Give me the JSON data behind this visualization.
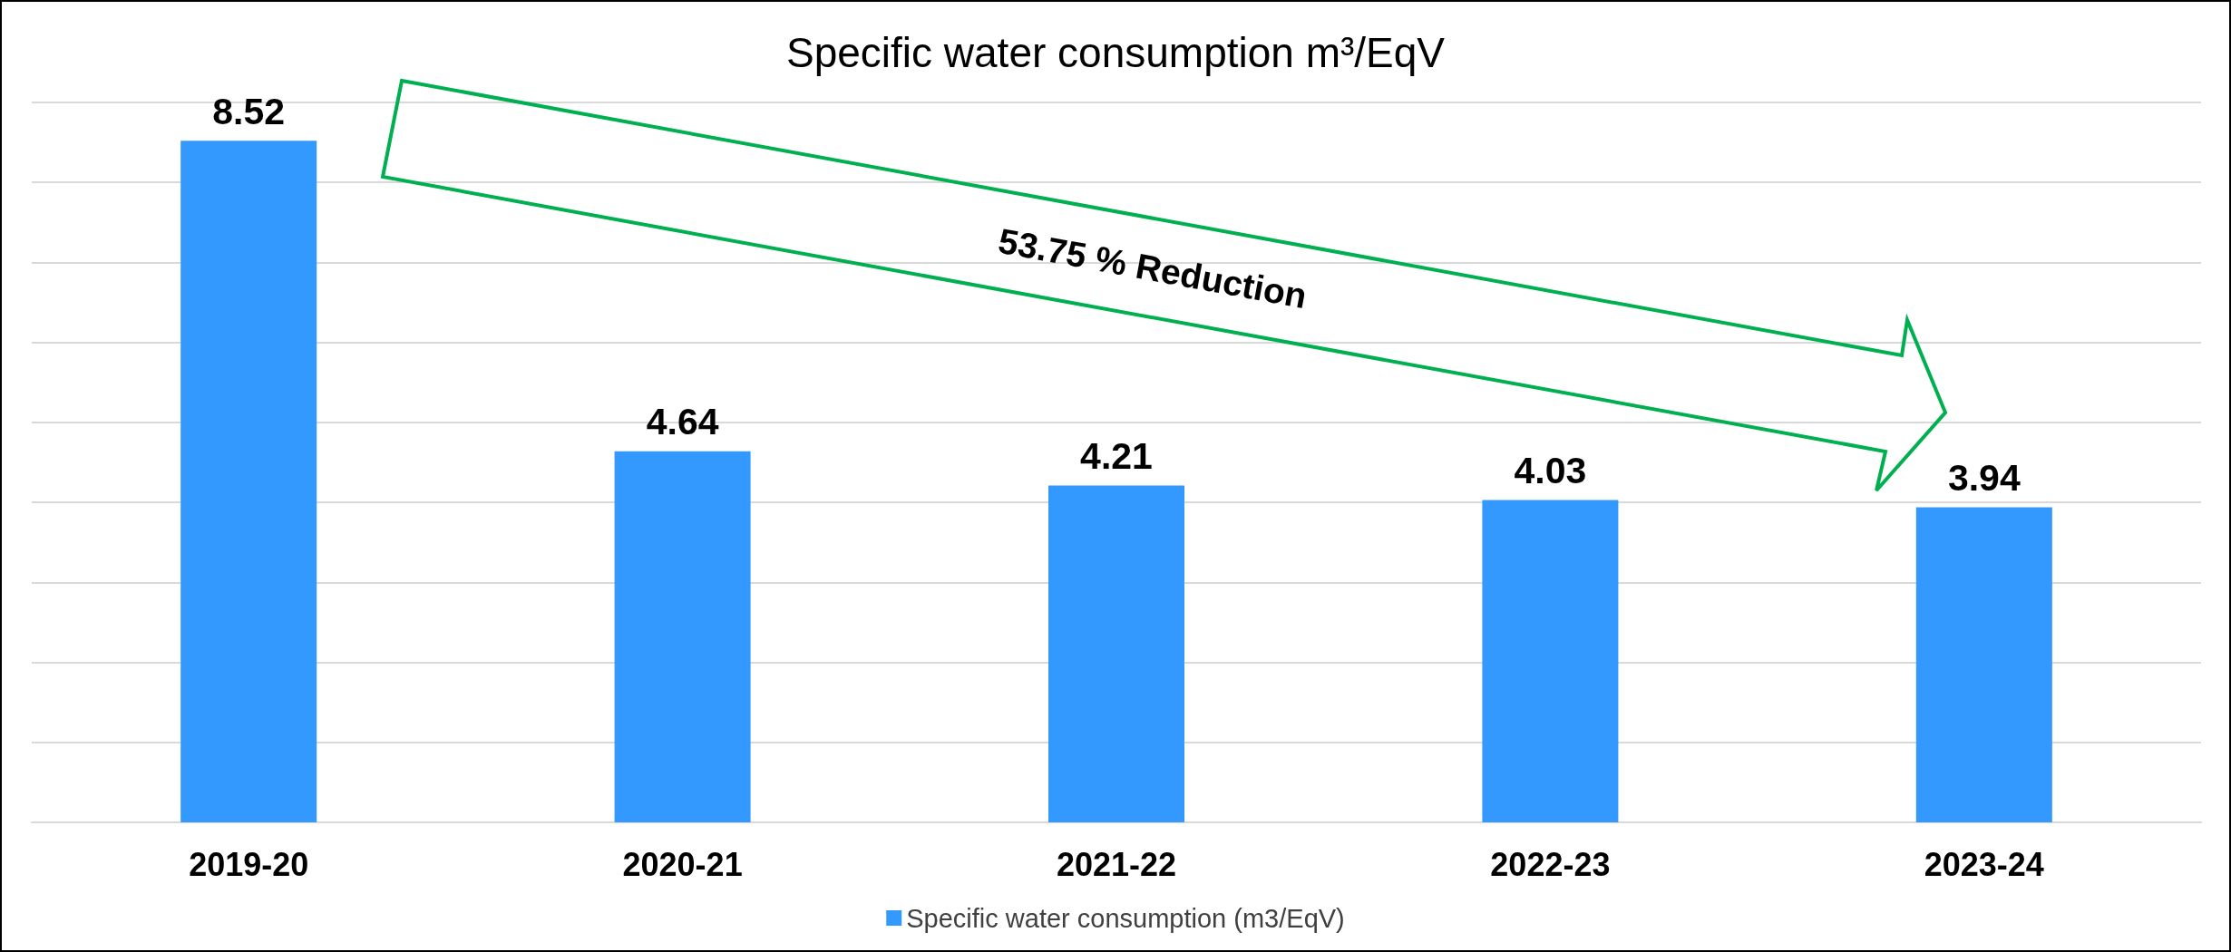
{
  "chart_data": {
    "type": "bar",
    "title": "Specific water consumption m³/EqV",
    "categories": [
      "2019-20",
      "2020-21",
      "2021-22",
      "2022-23",
      "2023-24"
    ],
    "series": [
      {
        "name": "Specific water consumption (m3/EqV)",
        "color": "#3399ff",
        "values": [
          8.52,
          4.64,
          4.21,
          4.03,
          3.94
        ]
      }
    ],
    "ylim": [
      0,
      9
    ],
    "yticks": [
      {
        "value": 0,
        "label": null
      },
      {
        "value": 1,
        "label": null
      },
      {
        "value": 2,
        "label": null
      },
      {
        "value": 3,
        "label": null
      },
      {
        "value": 4,
        "label": null
      },
      {
        "value": 5,
        "label": null
      },
      {
        "value": 6,
        "label": null
      },
      {
        "value": 7,
        "label": null
      },
      {
        "value": 8,
        "label": null
      },
      {
        "value": 9,
        "label": null
      }
    ],
    "grid": "y",
    "legend": "bottom",
    "tick_labels": "x",
    "data_labels": true,
    "annotations": [
      "53.75 % Reduction"
    ]
  }
}
